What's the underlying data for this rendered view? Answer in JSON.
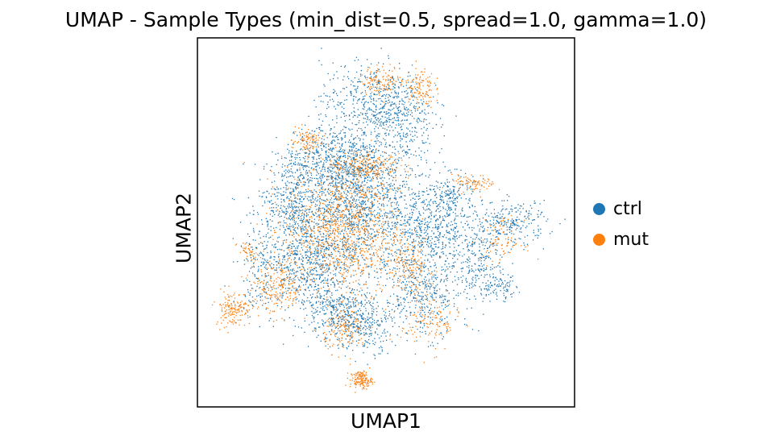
{
  "chart_data": {
    "type": "scatter",
    "title": "UMAP - Sample Types (min_dist=0.5, spread=1.0, gamma=1.0)",
    "xlabel": "UMAP1",
    "ylabel": "UMAP2",
    "xlim": [
      0,
      100
    ],
    "ylim": [
      0,
      100
    ],
    "grid": false,
    "ticks": false,
    "legend_position": "right",
    "series": [
      {
        "name": "ctrl",
        "color": "#1f77b4",
        "clusters": [
          {
            "cx": 42,
            "cy": 55,
            "sx": 9,
            "sy": 10,
            "n": 1400
          },
          {
            "cx": 28,
            "cy": 40,
            "sx": 6,
            "sy": 8,
            "n": 700
          },
          {
            "cx": 46,
            "cy": 85,
            "sx": 7,
            "sy": 5,
            "n": 400
          },
          {
            "cx": 53,
            "cy": 78,
            "sx": 5,
            "sy": 6,
            "n": 300
          },
          {
            "cx": 62,
            "cy": 48,
            "sx": 6,
            "sy": 6,
            "n": 500
          },
          {
            "cx": 60,
            "cy": 30,
            "sx": 5,
            "sy": 6,
            "n": 400
          },
          {
            "cx": 44,
            "cy": 22,
            "sx": 4,
            "sy": 4,
            "n": 300
          },
          {
            "cx": 35,
            "cy": 25,
            "sx": 4,
            "sy": 4,
            "n": 250
          },
          {
            "cx": 75,
            "cy": 40,
            "sx": 4,
            "sy": 6,
            "n": 250
          },
          {
            "cx": 84,
            "cy": 50,
            "sx": 5,
            "sy": 3,
            "n": 250
          },
          {
            "cx": 81,
            "cy": 32,
            "sx": 3,
            "sy": 2,
            "n": 90
          },
          {
            "cx": 38,
            "cy": 68,
            "sx": 6,
            "sy": 5,
            "n": 400
          },
          {
            "cx": 15,
            "cy": 38,
            "sx": 3,
            "sy": 6,
            "n": 150
          },
          {
            "cx": 23,
            "cy": 55,
            "sx": 4,
            "sy": 4,
            "n": 220
          },
          {
            "cx": 68,
            "cy": 58,
            "sx": 3,
            "sy": 3,
            "n": 150
          },
          {
            "cx": 26,
            "cy": 65,
            "sx": 4,
            "sy": 4,
            "n": 180
          }
        ]
      },
      {
        "name": "mut",
        "color": "#ff7f0e",
        "clusters": [
          {
            "cx": 38,
            "cy": 48,
            "sx": 8,
            "sy": 9,
            "n": 1100
          },
          {
            "cx": 8,
            "cy": 26,
            "sx": 2.5,
            "sy": 2.5,
            "n": 160
          },
          {
            "cx": 43,
            "cy": 6,
            "sx": 1.5,
            "sy": 1.2,
            "n": 150
          },
          {
            "cx": 28,
            "cy": 73,
            "sx": 2,
            "sy": 2,
            "n": 100
          },
          {
            "cx": 44,
            "cy": 66,
            "sx": 5,
            "sy": 2,
            "n": 200
          },
          {
            "cx": 49,
            "cy": 90,
            "sx": 3,
            "sy": 2,
            "n": 120
          },
          {
            "cx": 59,
            "cy": 88,
            "sx": 2,
            "sy": 3,
            "n": 120
          },
          {
            "cx": 74,
            "cy": 61,
            "sx": 3,
            "sy": 1.2,
            "n": 80
          },
          {
            "cx": 39,
            "cy": 20,
            "sx": 3,
            "sy": 3,
            "n": 150
          },
          {
            "cx": 56,
            "cy": 38,
            "sx": 3,
            "sy": 4,
            "n": 150
          },
          {
            "cx": 82,
            "cy": 45,
            "sx": 3,
            "sy": 3,
            "n": 80
          },
          {
            "cx": 20,
            "cy": 32,
            "sx": 4,
            "sy": 4,
            "n": 200
          },
          {
            "cx": 62,
            "cy": 22,
            "sx": 4,
            "sy": 4,
            "n": 120
          },
          {
            "cx": 12,
            "cy": 42,
            "sx": 1.5,
            "sy": 1.5,
            "n": 40
          }
        ]
      }
    ]
  }
}
